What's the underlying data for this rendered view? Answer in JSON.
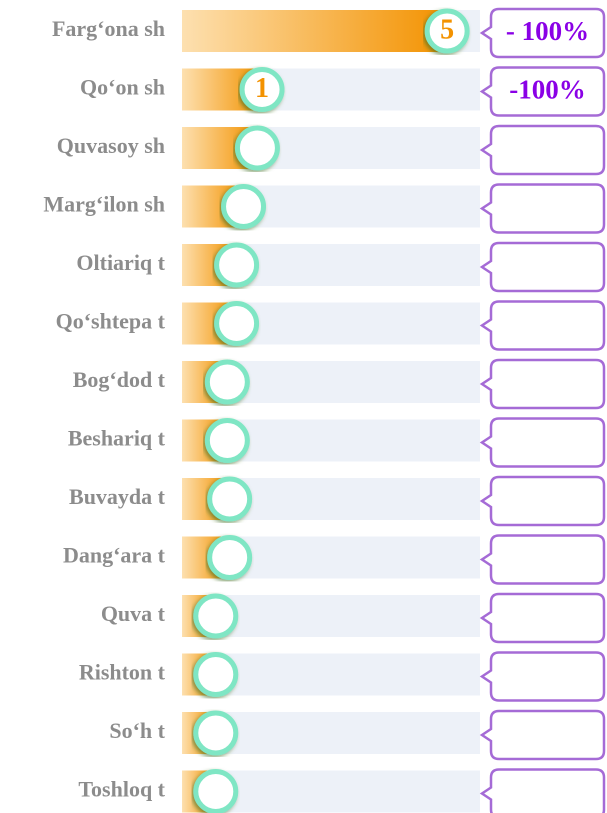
{
  "chart_data": {
    "type": "bar",
    "orientation": "horizontal",
    "categories": [
      "Farg‘ona sh",
      "Qo‘on sh",
      "Quvasoy sh",
      "Marg‘ilon sh",
      "Oltiariq t",
      "Qo‘shtepa t",
      "Bog‘dod t",
      "Beshariq t",
      "Buvayda t",
      "Dang‘ara t",
      "Quva t",
      "Rishton t",
      "So‘h t",
      "Toshloq t"
    ],
    "values": [
      5,
      1,
      0.9,
      0.6,
      0.45,
      0.45,
      0.25,
      0.25,
      0.3,
      0.3,
      0,
      0,
      0,
      0
    ],
    "value_labels": [
      "5",
      "1",
      null,
      null,
      null,
      null,
      null,
      null,
      null,
      null,
      null,
      null,
      null,
      null
    ],
    "changes": [
      -100,
      -100,
      null,
      null,
      null,
      null,
      null,
      null,
      null,
      null,
      null,
      null,
      null,
      null
    ],
    "change_labels": [
      "- 100%",
      "-100%",
      null,
      null,
      null,
      null,
      null,
      null,
      null,
      null,
      null,
      null,
      null,
      null
    ],
    "xlim": [
      -0.73,
      5.71
    ],
    "color": "#f39200"
  }
}
